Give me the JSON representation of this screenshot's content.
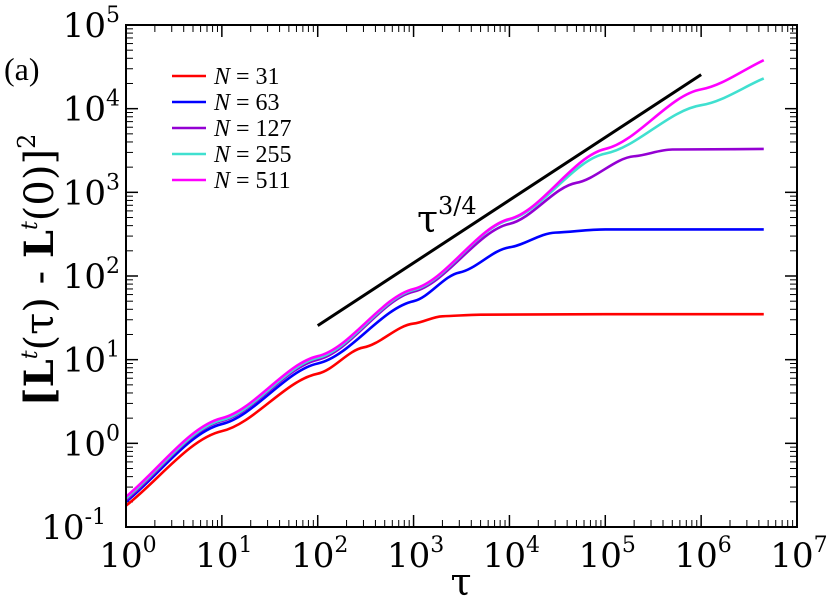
{
  "chart_data": {
    "type": "line",
    "panel_label": "(a)",
    "xlabel": "τ",
    "ylabel": {
      "open": "[",
      "L": "L",
      "t": "t",
      "tau_part": "(τ) - ",
      "zero_part": "(0)]",
      "power": "2"
    },
    "x_scale": "log",
    "y_scale": "log",
    "xlim": [
      1,
      10000000
    ],
    "ylim": [
      0.1,
      100000
    ],
    "x_ticks": [
      {
        "base": "10",
        "exp": "0",
        "value": 1
      },
      {
        "base": "10",
        "exp": "1",
        "value": 10
      },
      {
        "base": "10",
        "exp": "2",
        "value": 100
      },
      {
        "base": "10",
        "exp": "3",
        "value": 1000
      },
      {
        "base": "10",
        "exp": "4",
        "value": 10000
      },
      {
        "base": "10",
        "exp": "5",
        "value": 100000
      },
      {
        "base": "10",
        "exp": "6",
        "value": 1000000
      },
      {
        "base": "10",
        "exp": "7",
        "value": 10000000
      }
    ],
    "y_ticks": [
      {
        "base": "10",
        "exp": "-1",
        "value": 0.1
      },
      {
        "base": "10",
        "exp": "0",
        "value": 1
      },
      {
        "base": "10",
        "exp": "1",
        "value": 10
      },
      {
        "base": "10",
        "exp": "2",
        "value": 100
      },
      {
        "base": "10",
        "exp": "3",
        "value": 1000
      },
      {
        "base": "10",
        "exp": "4",
        "value": 10000
      },
      {
        "base": "10",
        "exp": "5",
        "value": 100000
      }
    ],
    "series": [
      {
        "name": "N = 31",
        "name_var": "N",
        "name_rest": " = 31",
        "color": "#ff0000",
        "points": [
          [
            1,
            0.18
          ],
          [
            10,
            1.4
          ],
          [
            100,
            6.8
          ],
          [
            300,
            14
          ],
          [
            1000,
            27
          ],
          [
            2000,
            33
          ],
          [
            5000,
            34.5
          ],
          [
            100000,
            35
          ],
          [
            4500000,
            35
          ]
        ]
      },
      {
        "name": "N = 63",
        "name_var": "N",
        "name_rest": " = 63",
        "color": "#0000ff",
        "points": [
          [
            1,
            0.2
          ],
          [
            10,
            1.7
          ],
          [
            100,
            9
          ],
          [
            1000,
            50
          ],
          [
            3000,
            110
          ],
          [
            10000,
            220
          ],
          [
            30000,
            330
          ],
          [
            100000,
            360
          ],
          [
            4500000,
            360
          ]
        ]
      },
      {
        "name": "N = 127",
        "name_var": "N",
        "name_rest": " = 127",
        "color": "#9400d3",
        "points": [
          [
            1,
            0.21
          ],
          [
            10,
            1.85
          ],
          [
            100,
            10
          ],
          [
            1000,
            65
          ],
          [
            10000,
            420
          ],
          [
            50000,
            1300
          ],
          [
            200000,
            2700
          ],
          [
            500000,
            3250
          ],
          [
            4500000,
            3300
          ]
        ]
      },
      {
        "name": "N = 255",
        "name_var": "N",
        "name_rest": " = 255",
        "color": "#40e0d0",
        "points": [
          [
            1,
            0.22
          ],
          [
            10,
            1.9
          ],
          [
            100,
            10.5
          ],
          [
            1000,
            68
          ],
          [
            10000,
            470
          ],
          [
            100000,
            2900
          ],
          [
            1000000,
            11000
          ],
          [
            4500000,
            23000
          ]
        ]
      },
      {
        "name": "N = 511",
        "name_var": "N",
        "name_rest": " = 511",
        "color": "#ff00ff",
        "points": [
          [
            1,
            0.23
          ],
          [
            10,
            2.0
          ],
          [
            100,
            11
          ],
          [
            1000,
            70
          ],
          [
            10000,
            480
          ],
          [
            100000,
            3300
          ],
          [
            1000000,
            17000
          ],
          [
            4500000,
            38000
          ]
        ]
      }
    ],
    "reference_line": {
      "label_base": "τ",
      "label_exp": "3/4",
      "color": "#000000",
      "points": [
        [
          100,
          25.5
        ],
        [
          1000000,
          25500
        ]
      ]
    },
    "legend_position": "top-left"
  }
}
